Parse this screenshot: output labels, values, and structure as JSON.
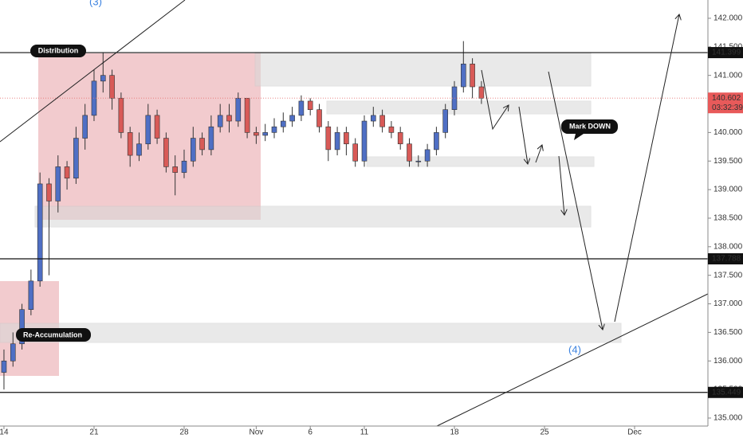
{
  "chart_data": {
    "type": "candlestick",
    "x": [
      0,
      0.5,
      1,
      1.5,
      2,
      2.5,
      3,
      3.5,
      4,
      4.5,
      5,
      5.5,
      6,
      6.5,
      7,
      7.5,
      8,
      8.5,
      9,
      9.5,
      10,
      10.5,
      11,
      11.5,
      12,
      12.5,
      13,
      13.5,
      14,
      14.5,
      15,
      15.5,
      16,
      16.5,
      17,
      17.5,
      18,
      18.5,
      19,
      19.5,
      20,
      20.5,
      21,
      21.5,
      22,
      22.5,
      23,
      23.5,
      24,
      24.5,
      25,
      25.5,
      26,
      26.5
    ],
    "open": [
      135.8,
      136.0,
      136.3,
      136.9,
      137.4,
      139.1,
      138.8,
      139.4,
      139.2,
      139.9,
      140.3,
      140.9,
      141.0,
      140.6,
      140.0,
      139.6,
      139.8,
      140.3,
      139.9,
      139.4,
      139.3,
      139.5,
      139.9,
      139.7,
      140.1,
      140.3,
      140.2,
      140.6,
      140.0,
      139.95,
      140.0,
      140.1,
      140.2,
      140.3,
      140.55,
      140.4,
      140.1,
      139.7,
      140.0,
      139.8,
      139.5,
      140.2,
      140.3,
      140.1,
      140.0,
      139.8,
      139.5,
      139.5,
      139.7,
      140.0,
      140.4,
      140.8,
      141.2,
      140.8
    ],
    "high": [
      136.2,
      136.5,
      137.0,
      137.6,
      139.3,
      139.2,
      139.6,
      139.5,
      140.1,
      140.5,
      141.1,
      141.4,
      141.1,
      140.7,
      140.1,
      140.0,
      140.5,
      140.4,
      140.0,
      139.6,
      139.7,
      140.1,
      140.0,
      140.3,
      140.5,
      140.5,
      140.7,
      140.6,
      140.1,
      140.15,
      140.25,
      140.35,
      140.45,
      140.65,
      140.6,
      140.5,
      140.2,
      140.1,
      140.1,
      139.9,
      140.3,
      140.45,
      140.4,
      140.2,
      140.1,
      139.9,
      139.6,
      139.8,
      140.1,
      140.5,
      140.9,
      141.6,
      141.3,
      140.9
    ],
    "low": [
      135.5,
      135.9,
      136.2,
      136.8,
      137.3,
      137.5,
      138.6,
      139.0,
      139.1,
      139.7,
      140.2,
      140.7,
      140.4,
      139.9,
      139.4,
      139.5,
      139.7,
      139.8,
      139.3,
      138.9,
      139.2,
      139.4,
      139.6,
      139.6,
      140.0,
      140.0,
      140.1,
      139.9,
      139.8,
      139.85,
      139.9,
      140.0,
      140.1,
      140.2,
      140.3,
      140.0,
      139.5,
      139.6,
      139.6,
      139.4,
      139.4,
      140.1,
      140.0,
      139.9,
      139.7,
      139.4,
      139.4,
      139.4,
      139.6,
      139.9,
      140.3,
      140.7,
      140.6,
      140.5
    ],
    "close": [
      136.0,
      136.3,
      136.9,
      137.4,
      139.1,
      138.8,
      139.4,
      139.2,
      139.9,
      140.3,
      140.9,
      141.0,
      140.6,
      140.0,
      139.6,
      139.8,
      140.3,
      139.9,
      139.4,
      139.3,
      139.5,
      139.9,
      139.7,
      140.1,
      140.3,
      140.2,
      140.6,
      140.0,
      139.95,
      140.0,
      140.1,
      140.2,
      140.3,
      140.55,
      140.4,
      140.1,
      139.7,
      140.0,
      139.8,
      139.5,
      140.2,
      140.3,
      140.1,
      140.0,
      139.8,
      139.5,
      139.5,
      139.7,
      140.0,
      140.4,
      140.8,
      141.2,
      140.8,
      140.6
    ],
    "up_color": "#4f6fc4",
    "down_color": "#d85a57",
    "xlim": [
      -0.22,
      39.07
    ],
    "xticks": [
      {
        "value": 0,
        "label": "14"
      },
      {
        "value": 5,
        "label": "21"
      },
      {
        "value": 10,
        "label": "28"
      },
      {
        "value": 14,
        "label": "Nov"
      },
      {
        "value": 17,
        "label": "6"
      },
      {
        "value": 20,
        "label": "11"
      },
      {
        "value": 25,
        "label": "18"
      },
      {
        "value": 30,
        "label": "25"
      },
      {
        "value": 35,
        "label": "Dec"
      }
    ],
    "ylim": [
      134.86,
      142.32
    ],
    "yticks": [
      {
        "value": 135,
        "label": "135.000"
      },
      {
        "value": 135.5,
        "label": "135.500"
      },
      {
        "value": 136,
        "label": "136.000"
      },
      {
        "value": 136.5,
        "label": "136.500"
      },
      {
        "value": 137,
        "label": "137.000"
      },
      {
        "value": 137.5,
        "label": "137.500"
      },
      {
        "value": 138,
        "label": "138.000"
      },
      {
        "value": 138.5,
        "label": "138.500"
      },
      {
        "value": 139,
        "label": "139.000"
      },
      {
        "value": 139.5,
        "label": "139.500"
      },
      {
        "value": 140,
        "label": "140.000"
      },
      {
        "value": 140.5,
        "label": "140.500"
      },
      {
        "value": 141,
        "label": "141.000"
      },
      {
        "value": 141.5,
        "label": "141.500"
      },
      {
        "value": 142,
        "label": "142.000"
      }
    ],
    "levels": [
      141.399,
      137.788,
      135.449
    ],
    "current_price": 140.602,
    "countdown": "03:32:39",
    "annotations": {
      "distribution": "Distribution",
      "re_accumulation": "Re-Accumulation",
      "mark_down": "Mark DOWN",
      "wave_3": "(3)",
      "wave_4": "(4)"
    }
  }
}
